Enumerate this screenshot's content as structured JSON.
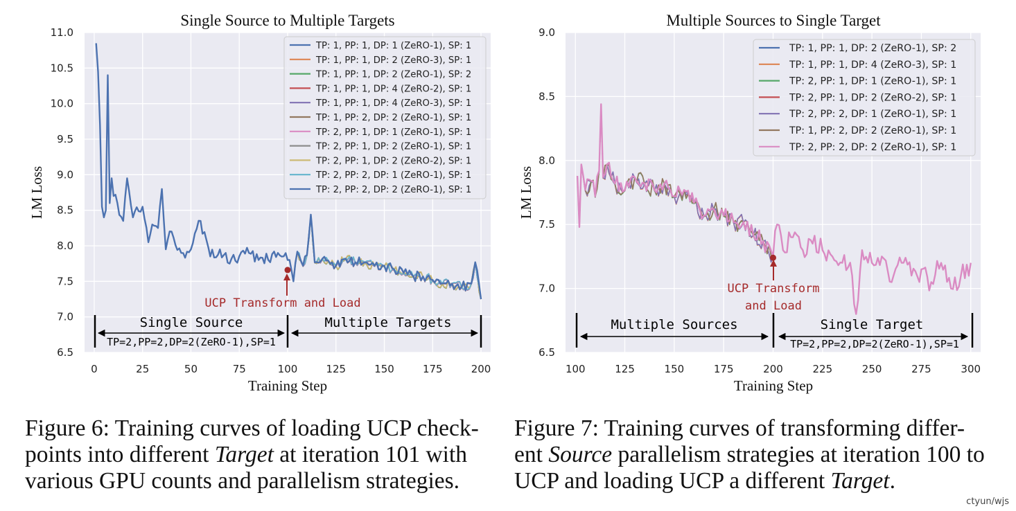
{
  "colors": {
    "plot_bg": "#eaeaf2",
    "grid": "#ffffff",
    "annotation": "#a52a2a",
    "series": [
      "#4c72b0",
      "#dd8452",
      "#55a868",
      "#c44e52",
      "#8172b3",
      "#937860",
      "#da8bc3",
      "#8c8c8c",
      "#ccb974",
      "#64b5cd",
      "#4c72b0"
    ]
  },
  "chart_data": [
    {
      "type": "line",
      "title": "Single Source to Multiple Targets",
      "xlabel": "Training Step",
      "ylabel": "LM Loss",
      "xlim": [
        -5,
        205
      ],
      "ylim": [
        6.5,
        11.0
      ],
      "xticks": [
        0,
        25,
        50,
        75,
        100,
        125,
        150,
        175,
        200
      ],
      "yticks": [
        6.5,
        7.0,
        7.5,
        8.0,
        8.5,
        9.0,
        9.5,
        10.0,
        10.5,
        11.0
      ],
      "xtick_labels": [
        "0",
        "25",
        "50",
        "75",
        "100",
        "125",
        "150",
        "175",
        "200"
      ],
      "ytick_labels": [
        "6.5",
        "7.0",
        "7.5",
        "8.0",
        "8.5",
        "9.0",
        "9.5",
        "10.0",
        "10.5",
        "11.0"
      ],
      "grid": true,
      "legend_position": "top-right",
      "series": [
        {
          "name": "TP: 1, PP: 1, DP: 1 (ZeRO-1), SP: 1"
        },
        {
          "name": "TP: 1, PP: 1, DP: 2 (ZeRO-3), SP: 1"
        },
        {
          "name": "TP: 1, PP: 1, DP: 2 (ZeRO-1), SP: 2"
        },
        {
          "name": "TP: 1, PP: 1, DP: 4 (ZeRO-2), SP: 1"
        },
        {
          "name": "TP: 1, PP: 1, DP: 4 (ZeRO-3), SP: 1"
        },
        {
          "name": "TP: 1, PP: 2, DP: 2 (ZeRO-1), SP: 1"
        },
        {
          "name": "TP: 2, PP: 1, DP: 1 (ZeRO-1), SP: 1"
        },
        {
          "name": "TP: 2, PP: 1, DP: 2 (ZeRO-1), SP: 1"
        },
        {
          "name": "TP: 2, PP: 1, DP: 2 (ZeRO-2), SP: 1"
        },
        {
          "name": "TP: 2, PP: 2, DP: 1 (ZeRO-1), SP: 1"
        },
        {
          "name": "TP: 2, PP: 2, DP: 2 (ZeRO-1), SP: 1"
        }
      ],
      "shared_segment": {
        "x_start": 1,
        "x_end": 100,
        "end_value": 7.8,
        "anchors": [
          [
            1,
            10.85
          ],
          [
            2,
            10.45
          ],
          [
            3,
            9.7
          ],
          [
            4,
            8.55
          ],
          [
            5,
            8.4
          ],
          [
            6,
            8.5
          ],
          [
            7,
            10.4
          ],
          [
            8,
            8.6
          ],
          [
            9,
            8.95
          ],
          [
            10,
            8.7
          ],
          [
            12,
            8.6
          ],
          [
            15,
            8.35
          ],
          [
            17,
            8.95
          ],
          [
            20,
            8.4
          ],
          [
            25,
            8.55
          ],
          [
            28,
            8.05
          ],
          [
            30,
            8.3
          ],
          [
            33,
            8.25
          ],
          [
            35,
            8.8
          ],
          [
            37,
            7.95
          ],
          [
            40,
            8.2
          ],
          [
            45,
            7.9
          ],
          [
            50,
            7.95
          ],
          [
            55,
            8.35
          ],
          [
            60,
            7.85
          ],
          [
            65,
            7.95
          ],
          [
            70,
            7.75
          ],
          [
            75,
            7.85
          ],
          [
            80,
            7.9
          ],
          [
            85,
            7.8
          ],
          [
            90,
            7.8
          ],
          [
            95,
            7.9
          ],
          [
            100,
            7.8
          ]
        ]
      },
      "branch_segment": {
        "x_start": 101,
        "x_end": 200,
        "seed_values": [
          7.8,
          7.25
        ],
        "spread": 0.04,
        "anchors": [
          [
            101,
            7.8
          ],
          [
            103,
            7.5
          ],
          [
            105,
            7.9
          ],
          [
            108,
            7.7
          ],
          [
            110,
            7.85
          ],
          [
            112,
            8.42
          ],
          [
            114,
            7.75
          ],
          [
            118,
            7.8
          ],
          [
            125,
            7.7
          ],
          [
            130,
            7.8
          ],
          [
            135,
            7.75
          ],
          [
            140,
            7.75
          ],
          [
            145,
            7.7
          ],
          [
            150,
            7.7
          ],
          [
            155,
            7.65
          ],
          [
            160,
            7.6
          ],
          [
            165,
            7.55
          ],
          [
            170,
            7.55
          ],
          [
            175,
            7.5
          ],
          [
            180,
            7.45
          ],
          [
            185,
            7.45
          ],
          [
            190,
            7.4
          ],
          [
            195,
            7.45
          ],
          [
            197,
            7.75
          ],
          [
            200,
            7.25
          ]
        ]
      },
      "transform_point": {
        "x": 100,
        "y": 7.66
      },
      "annotations": {
        "transform_label": "UCP Transform and Load",
        "left_region_label": "Single Source",
        "right_region_label": "Multiple Targets",
        "source_config": "TP=2,PP=2,DP=2(ZeRO-1),SP=1"
      }
    },
    {
      "type": "line",
      "title": "Multiple Sources to Single Target",
      "xlabel": "Training Step",
      "ylabel": "LM Loss",
      "xlim": [
        95,
        305
      ],
      "ylim": [
        6.5,
        9.0
      ],
      "xticks": [
        100,
        125,
        150,
        175,
        200,
        225,
        250,
        275,
        300
      ],
      "yticks": [
        6.5,
        7.0,
        7.5,
        8.0,
        8.5,
        9.0
      ],
      "xtick_labels": [
        "100",
        "125",
        "150",
        "175",
        "200",
        "225",
        "250",
        "275",
        "300"
      ],
      "ytick_labels": [
        "6.5",
        "7.0",
        "7.5",
        "8.0",
        "8.5",
        "9.0"
      ],
      "grid": true,
      "legend_position": "top-right",
      "series": [
        {
          "name": "TP: 1, PP: 1, DP: 2 (ZeRO-1), SP: 2"
        },
        {
          "name": "TP: 1, PP: 1, DP: 4 (ZeRO-3), SP: 1"
        },
        {
          "name": "TP: 2, PP: 1, DP: 1 (ZeRO-1), SP: 1"
        },
        {
          "name": "TP: 2, PP: 1, DP: 2 (ZeRO-2), SP: 1"
        },
        {
          "name": "TP: 2, PP: 2, DP: 1 (ZeRO-1), SP: 1"
        },
        {
          "name": "TP: 1, PP: 2, DP: 2 (ZeRO-1), SP: 1"
        },
        {
          "name": "TP: 2, PP: 2, DP: 2 (ZeRO-1), SP: 1"
        }
      ],
      "branch_segment": {
        "x_start": 101,
        "x_end": 200,
        "seed_values": [
          7.85,
          7.25
        ],
        "spread": 0.05,
        "anchors": [
          [
            101,
            7.88
          ],
          [
            102,
            7.48
          ],
          [
            103,
            7.95
          ],
          [
            105,
            7.75
          ],
          [
            108,
            7.82
          ],
          [
            110,
            7.7
          ],
          [
            112,
            7.9
          ],
          [
            113,
            8.42
          ],
          [
            114,
            7.85
          ],
          [
            116,
            7.95
          ],
          [
            120,
            7.8
          ],
          [
            125,
            7.75
          ],
          [
            130,
            7.85
          ],
          [
            135,
            7.8
          ],
          [
            140,
            7.75
          ],
          [
            145,
            7.8
          ],
          [
            150,
            7.7
          ],
          [
            155,
            7.75
          ],
          [
            160,
            7.65
          ],
          [
            165,
            7.55
          ],
          [
            170,
            7.6
          ],
          [
            175,
            7.55
          ],
          [
            180,
            7.5
          ],
          [
            185,
            7.5
          ],
          [
            190,
            7.4
          ],
          [
            195,
            7.35
          ],
          [
            200,
            7.25
          ]
        ]
      },
      "shared_segment": {
        "x_start": 200,
        "x_end": 300,
        "end_value": 7.2,
        "anchors": [
          [
            200,
            7.25
          ],
          [
            202,
            7.5
          ],
          [
            205,
            7.3
          ],
          [
            210,
            7.4
          ],
          [
            215,
            7.3
          ],
          [
            220,
            7.35
          ],
          [
            225,
            7.3
          ],
          [
            230,
            7.25
          ],
          [
            235,
            7.2
          ],
          [
            240,
            7.1
          ],
          [
            242,
            6.8
          ],
          [
            245,
            7.3
          ],
          [
            250,
            7.2
          ],
          [
            255,
            7.25
          ],
          [
            260,
            7.05
          ],
          [
            265,
            7.2
          ],
          [
            270,
            7.1
          ],
          [
            275,
            7.15
          ],
          [
            280,
            7.05
          ],
          [
            285,
            7.2
          ],
          [
            290,
            7.0
          ],
          [
            295,
            7.1
          ],
          [
            300,
            7.2
          ]
        ]
      },
      "transform_point": {
        "x": 200,
        "y": 7.24
      },
      "annotations": {
        "transform_label_line1": "UCP Transform",
        "transform_label_line2": "and Load",
        "left_region_label": "Multiple Sources",
        "right_region_label": "Single Target",
        "target_config": "TP=2,PP=2,DP=2(ZeRO-1),SP=1"
      }
    }
  ],
  "captions": {
    "fig6": {
      "lead": "Figure 6: Training curves of loading UCP  check-points into different ",
      "em": "Target",
      "tail": " at iteration 101 with various GPU counts and parallelism strategies."
    },
    "fig7": {
      "lead": "Figure 7: Training curves of transforming differ-ent ",
      "em": "Source",
      "mid": " parallelism strategies at iteration 100 to UCP  and loading UCP  a different ",
      "em2": "Target",
      "tail": "."
    }
  },
  "watermark": "ctyun/wjs"
}
